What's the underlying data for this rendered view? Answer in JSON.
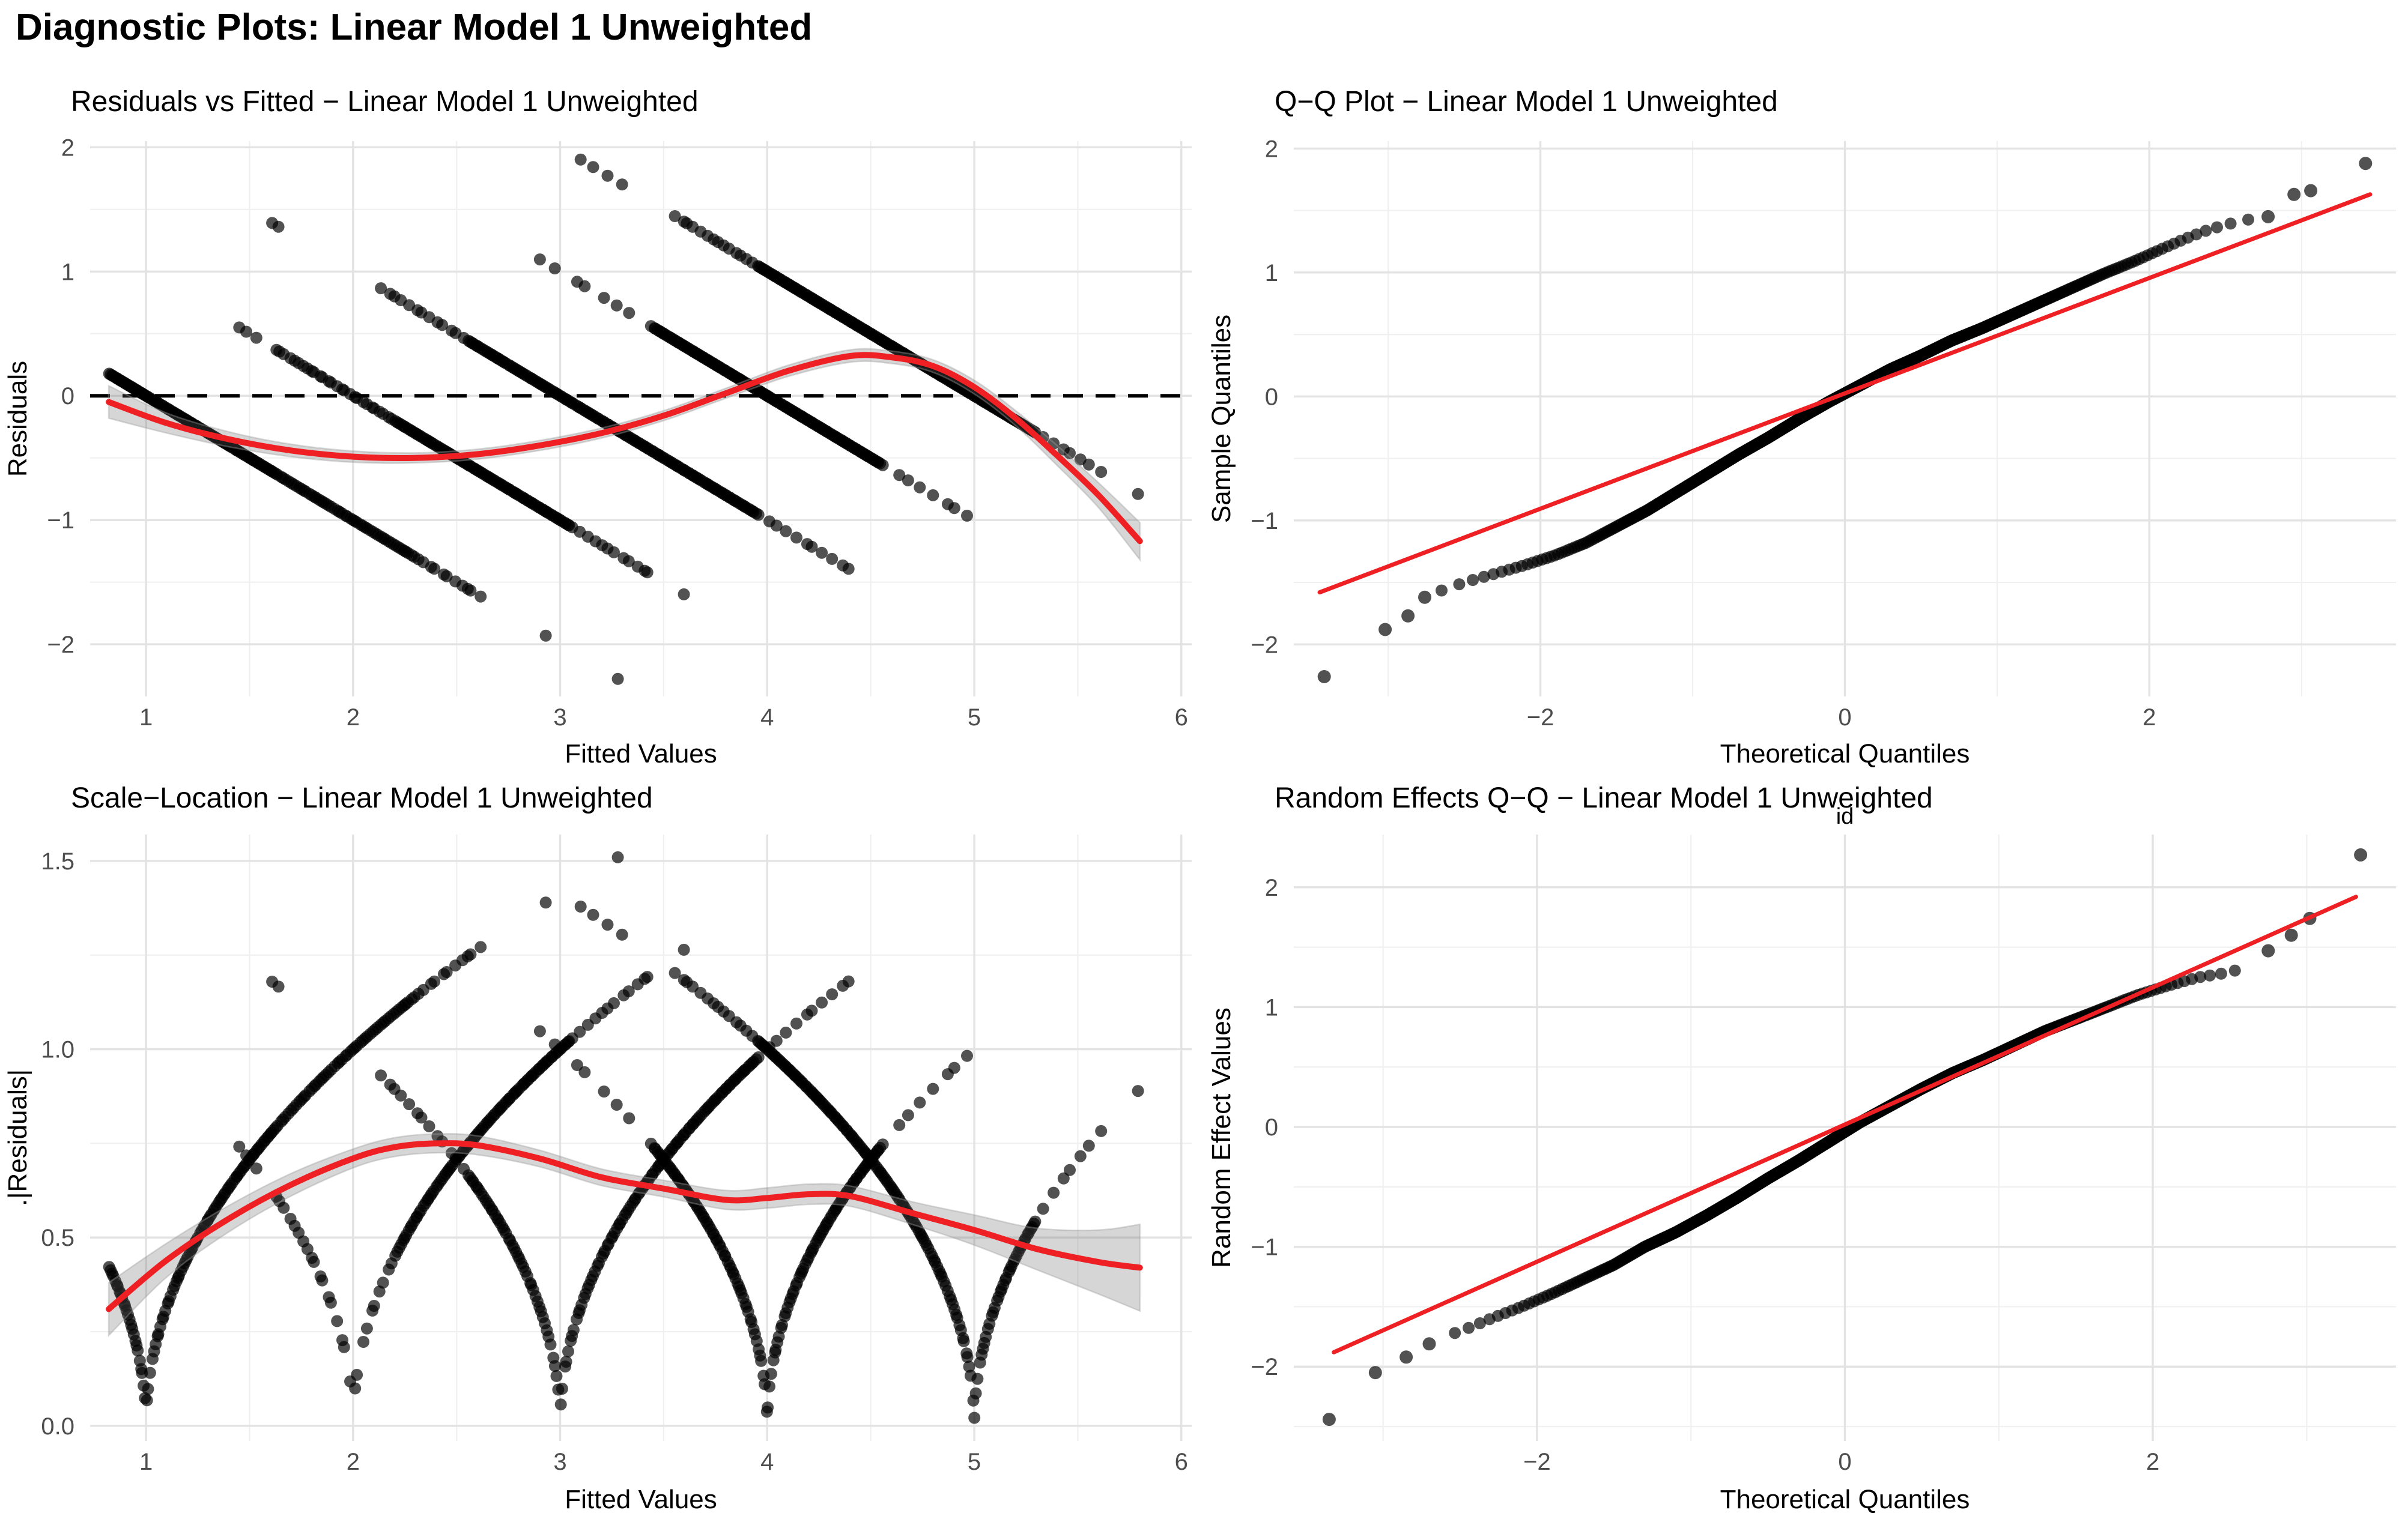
{
  "page": {
    "title": "Diagnostic Plots: Linear Model 1 Unweighted"
  },
  "style": {
    "background": "#FFFFFF",
    "red": "#EE2024",
    "point_color": "#000000",
    "point_opacity": 0.68,
    "grid_major": "#E3E3E3",
    "grid_minor": "#F0F0F0",
    "tick_color": "#4D4D4D",
    "text_color": "#000000",
    "ribbon_fill": "rgba(105,105,105,0.27)",
    "ribbon_edge": "rgba(160,160,160,0.40)",
    "dash_color": "#000000"
  },
  "chart_data": {
    "bands_note": "Residual stripes: observed value k on fitted x gives residual k-x (top-left) and sqrt(|k-x|) (bottom-left). segments = [fitted_from, fitted_to, n_points]",
    "bands": [
      {
        "obs": 1,
        "seed": 11,
        "segments": [
          [
            0.82,
            1.0,
            26
          ],
          [
            1.0,
            1.62,
            75
          ],
          [
            1.62,
            2.3,
            55
          ],
          [
            2.3,
            2.62,
            11
          ],
          [
            2.9,
            2.94,
            1
          ],
          [
            3.27,
            3.3,
            1
          ]
        ]
      },
      {
        "obs": 2,
        "seed": 22,
        "segments": [
          [
            1.44,
            1.54,
            3
          ],
          [
            1.62,
            2.2,
            28
          ],
          [
            2.2,
            3.05,
            95
          ],
          [
            3.05,
            3.45,
            12
          ],
          [
            3.59,
            3.63,
            1
          ]
        ]
      },
      {
        "obs": 3,
        "seed": 33,
        "segments": [
          [
            1.6,
            1.66,
            2
          ],
          [
            2.12,
            2.55,
            13
          ],
          [
            2.55,
            3.95,
            150
          ],
          [
            3.95,
            4.42,
            11
          ]
        ]
      },
      {
        "obs": 4,
        "seed": 44,
        "segments": [
          [
            2.88,
            3.45,
            8
          ],
          [
            3.45,
            4.55,
            140
          ],
          [
            4.55,
            5.0,
            8
          ]
        ]
      },
      {
        "obs": 5,
        "seed": 55,
        "segments": [
          [
            3.08,
            3.32,
            4
          ],
          [
            3.55,
            3.95,
            14
          ],
          [
            3.95,
            5.3,
            165
          ],
          [
            5.3,
            5.62,
            7
          ],
          [
            5.77,
            5.8,
            1
          ]
        ]
      }
    ],
    "panels": [
      {
        "key": "residuals_vs_fitted",
        "type": "scatter",
        "row": 1,
        "title": "Residuals vs Fitted − Linear Model 1 Unweighted",
        "xlabel": "Fitted Values",
        "ylabel": "Residuals",
        "xlim": [
          0.73,
          6.05
        ],
        "ylim": [
          -2.42,
          2.05
        ],
        "xticks": [
          1,
          2,
          3,
          4,
          5,
          6
        ],
        "xtick_labels": [
          "1",
          "2",
          "3",
          "4",
          "5",
          "6"
        ],
        "yticks": [
          -2,
          -1,
          0,
          1,
          2
        ],
        "ytick_labels": [
          "−2",
          "−1",
          "0",
          "1",
          "2"
        ],
        "minor_x": [
          1.5,
          2.5,
          3.5,
          4.5,
          5.5
        ],
        "minor_y": [
          -1.5,
          -0.5,
          0.5,
          1.5
        ],
        "points": "bands",
        "transform": "residual",
        "hline": {
          "y": 0,
          "dashed": true
        },
        "smooth": {
          "x": [
            0.82,
            1.1,
            1.4,
            1.7,
            2.0,
            2.3,
            2.6,
            2.9,
            3.2,
            3.5,
            3.8,
            4.1,
            4.4,
            4.6,
            4.8,
            5.0,
            5.2,
            5.4,
            5.6,
            5.8
          ],
          "y": [
            -0.05,
            -0.22,
            -0.35,
            -0.44,
            -0.49,
            -0.5,
            -0.47,
            -0.4,
            -0.3,
            -0.16,
            0.02,
            0.2,
            0.32,
            0.31,
            0.24,
            0.07,
            -0.18,
            -0.48,
            -0.8,
            -1.17
          ],
          "w": [
            0.13,
            0.08,
            0.06,
            0.05,
            0.045,
            0.04,
            0.04,
            0.04,
            0.04,
            0.04,
            0.04,
            0.045,
            0.05,
            0.05,
            0.05,
            0.055,
            0.06,
            0.08,
            0.1,
            0.15
          ]
        }
      },
      {
        "key": "qq_plot",
        "type": "qq",
        "row": 1,
        "title": "Q−Q Plot − Linear Model 1 Unweighted",
        "xlabel": "Theoretical Quantiles",
        "ylabel": "Sample Quantiles",
        "xlim": [
          -3.62,
          3.62
        ],
        "ylim": [
          -2.42,
          2.06
        ],
        "xticks": [
          -2,
          0,
          2
        ],
        "xtick_labels": [
          "−2",
          "0",
          "2"
        ],
        "yticks": [
          -2,
          -1,
          0,
          1,
          2
        ],
        "ytick_labels": [
          "−2",
          "−1",
          "0",
          "1",
          "2"
        ],
        "minor_x": [
          -3,
          -1,
          1,
          3
        ],
        "minor_y": [
          -1.5,
          -0.5,
          0.5,
          1.5
        ],
        "line": {
          "x1": -3.45,
          "y1": -1.58,
          "x2": 3.45,
          "y2": 1.63
        },
        "qq": {
          "n": 620,
          "cap": 2.66,
          "curve": [
            [
              -3.42,
              -2.26
            ],
            [
              -3.0,
              -1.87
            ],
            [
              -2.8,
              -1.68
            ],
            [
              -2.66,
              -1.57
            ],
            [
              -2.5,
              -1.5
            ],
            [
              -2.3,
              -1.43
            ],
            [
              -2.1,
              -1.36
            ],
            [
              -1.9,
              -1.28
            ],
            [
              -1.7,
              -1.18
            ],
            [
              -1.5,
              -1.05
            ],
            [
              -1.3,
              -0.92
            ],
            [
              -1.1,
              -0.77
            ],
            [
              -0.9,
              -0.62
            ],
            [
              -0.7,
              -0.47
            ],
            [
              -0.5,
              -0.33
            ],
            [
              -0.3,
              -0.18
            ],
            [
              -0.1,
              -0.04
            ],
            [
              0.1,
              0.09
            ],
            [
              0.3,
              0.22
            ],
            [
              0.5,
              0.33
            ],
            [
              0.7,
              0.45
            ],
            [
              0.9,
              0.55
            ],
            [
              1.1,
              0.66
            ],
            [
              1.3,
              0.77
            ],
            [
              1.5,
              0.88
            ],
            [
              1.7,
              0.99
            ],
            [
              1.9,
              1.09
            ],
            [
              2.1,
              1.2
            ],
            [
              2.25,
              1.28
            ],
            [
              2.4,
              1.35
            ],
            [
              2.55,
              1.4
            ],
            [
              2.66,
              1.43
            ]
          ],
          "outliers": [
            [
              -3.42,
              -2.26
            ],
            [
              -3.02,
              -1.88
            ],
            [
              -2.87,
              -1.77
            ],
            [
              -2.76,
              -1.62
            ],
            [
              2.78,
              1.45
            ],
            [
              2.95,
              1.63
            ],
            [
              3.06,
              1.66
            ],
            [
              3.42,
              1.88
            ]
          ]
        }
      },
      {
        "key": "scale_location",
        "type": "scatter",
        "row": 2,
        "title": "Scale−Location − Linear Model 1 Unweighted",
        "xlabel": "Fitted Values",
        "ylabel": ".|Residuals|",
        "xlim": [
          0.73,
          6.05
        ],
        "ylim": [
          -0.04,
          1.57
        ],
        "xticks": [
          1,
          2,
          3,
          4,
          5,
          6
        ],
        "xtick_labels": [
          "1",
          "2",
          "3",
          "4",
          "5",
          "6"
        ],
        "yticks": [
          0,
          0.5,
          1,
          1.5
        ],
        "ytick_labels": [
          "0.0",
          "0.5",
          "1.0",
          "1.5"
        ],
        "minor_x": [
          1.5,
          2.5,
          3.5,
          4.5,
          5.5
        ],
        "minor_y": [
          0.25,
          0.75,
          1.25
        ],
        "points": "bands",
        "transform": "sqrt_abs",
        "smooth": {
          "x": [
            0.82,
            1.1,
            1.4,
            1.7,
            2.0,
            2.2,
            2.4,
            2.6,
            2.9,
            3.2,
            3.5,
            3.8,
            4.0,
            4.2,
            4.4,
            4.7,
            5.0,
            5.3,
            5.6,
            5.8
          ],
          "y": [
            0.31,
            0.44,
            0.55,
            0.64,
            0.71,
            0.74,
            0.75,
            0.745,
            0.71,
            0.66,
            0.63,
            0.6,
            0.605,
            0.615,
            0.61,
            0.565,
            0.52,
            0.47,
            0.435,
            0.42
          ],
          "w": [
            0.07,
            0.045,
            0.035,
            0.03,
            0.025,
            0.025,
            0.025,
            0.025,
            0.022,
            0.022,
            0.022,
            0.025,
            0.027,
            0.027,
            0.027,
            0.03,
            0.04,
            0.055,
            0.085,
            0.115
          ]
        }
      },
      {
        "key": "random_effects_qq",
        "type": "qq",
        "row": 2,
        "title": "Random Effects Q−Q − Linear Model 1 Unweighted",
        "facet": "id",
        "xlabel": "Theoretical Quantiles",
        "ylabel": "Random Effect Values",
        "xlim": [
          -3.58,
          3.58
        ],
        "ylim": [
          -2.62,
          2.44
        ],
        "xticks": [
          -2,
          0,
          2
        ],
        "xtick_labels": [
          "−2",
          "0",
          "2"
        ],
        "yticks": [
          -2,
          -1,
          0,
          1,
          2
        ],
        "ytick_labels": [
          "−2",
          "−1",
          "0",
          "1",
          "2"
        ],
        "minor_x": [
          -3,
          -1,
          1,
          3
        ],
        "minor_y": [
          -2.5,
          -1.5,
          -0.5,
          0.5,
          1.5
        ],
        "line": {
          "x1": -3.32,
          "y1": -1.88,
          "x2": 3.32,
          "y2": 1.92
        },
        "qq": {
          "n": 620,
          "cap": 2.62,
          "curve": [
            [
              -3.35,
              -2.44
            ],
            [
              -3.0,
              -2.0
            ],
            [
              -2.8,
              -1.88
            ],
            [
              -2.62,
              -1.76
            ],
            [
              -2.45,
              -1.68
            ],
            [
              -2.3,
              -1.6
            ],
            [
              -2.1,
              -1.5
            ],
            [
              -1.9,
              -1.39
            ],
            [
              -1.7,
              -1.27
            ],
            [
              -1.5,
              -1.15
            ],
            [
              -1.3,
              -1.0
            ],
            [
              -1.1,
              -0.88
            ],
            [
              -0.9,
              -0.74
            ],
            [
              -0.7,
              -0.59
            ],
            [
              -0.5,
              -0.43
            ],
            [
              -0.3,
              -0.28
            ],
            [
              -0.1,
              -0.12
            ],
            [
              0.1,
              0.04
            ],
            [
              0.3,
              0.18
            ],
            [
              0.5,
              0.32
            ],
            [
              0.7,
              0.45
            ],
            [
              0.9,
              0.56
            ],
            [
              1.1,
              0.68
            ],
            [
              1.3,
              0.8
            ],
            [
              1.5,
              0.9
            ],
            [
              1.7,
              1.0
            ],
            [
              1.9,
              1.1
            ],
            [
              2.1,
              1.18
            ],
            [
              2.3,
              1.25
            ],
            [
              2.45,
              1.28
            ],
            [
              2.62,
              1.33
            ]
          ],
          "outliers": [
            [
              -3.35,
              -2.44
            ],
            [
              -3.05,
              -2.05
            ],
            [
              -2.85,
              -1.92
            ],
            [
              -2.7,
              -1.81
            ],
            [
              2.75,
              1.47
            ],
            [
              2.9,
              1.6
            ],
            [
              3.02,
              1.74
            ],
            [
              3.35,
              2.27
            ]
          ]
        }
      }
    ]
  }
}
